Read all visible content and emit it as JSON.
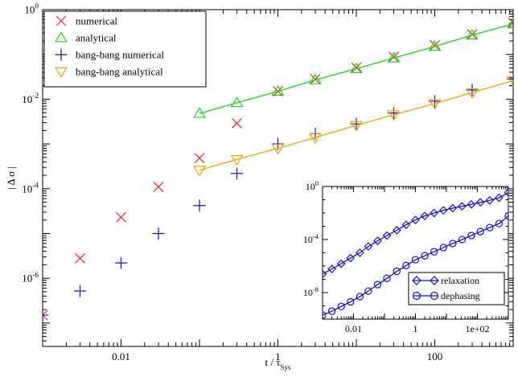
{
  "chart_data": [
    {
      "type": "scatter",
      "xscale": "log",
      "yscale": "log",
      "xlim": [
        0.001,
        1000
      ],
      "ylim": [
        3e-08,
        1
      ],
      "xlabel": "t / τ",
      "xlabel_sub": "Sys",
      "ylabel": "| Δ σ |",
      "x_ticks": [
        {
          "value": 0.01,
          "label": "0.01"
        },
        {
          "value": 1,
          "label": "1"
        },
        {
          "value": 100,
          "label": "100"
        }
      ],
      "y_ticks": [
        {
          "value": 1e-06,
          "base": "10",
          "exp": "-6"
        },
        {
          "value": 0.0001,
          "base": "10",
          "exp": "-4"
        },
        {
          "value": 0.01,
          "base": "10",
          "exp": "-2"
        },
        {
          "value": 1,
          "base": "10",
          "exp": "0"
        }
      ],
      "legend_position": "top-left",
      "series": [
        {
          "name": "numerical",
          "marker": "x",
          "color": "#e8262b",
          "x": [
            0.001,
            0.003,
            0.01,
            0.03,
            0.1,
            0.3,
            1,
            3,
            10,
            30,
            100,
            300,
            1000
          ],
          "y": [
            1.5e-07,
            2.8e-06,
            2.3e-05,
            0.00011,
            0.00048,
            0.0029,
            0.015,
            0.028,
            0.051,
            0.088,
            0.16,
            0.28,
            0.51
          ]
        },
        {
          "name": "analytical",
          "marker": "triangle-up",
          "color": "#1bd41b",
          "x": [
            0.1,
            0.3,
            1,
            3,
            10,
            30,
            100,
            300,
            1000
          ],
          "y": [
            0.0048,
            0.0083,
            0.015,
            0.027,
            0.048,
            0.083,
            0.15,
            0.27,
            0.48
          ],
          "line": true
        },
        {
          "name": "bang-bang numerical",
          "marker": "plus",
          "color": "#1212c8",
          "x": [
            0.001,
            0.003,
            0.01,
            0.03,
            0.1,
            0.3,
            1,
            3,
            10,
            30,
            100,
            300,
            1000
          ],
          "y": [
            1.5e-07,
            5.2e-07,
            2.2e-06,
            1e-05,
            4.2e-05,
            0.00022,
            0.001,
            0.0017,
            0.0028,
            0.0049,
            0.009,
            0.016,
            0.028
          ]
        },
        {
          "name": "bang-bang analytical",
          "marker": "triangle-down",
          "color": "#f5a000",
          "x": [
            0.1,
            0.3,
            1,
            3,
            10,
            30,
            100,
            300,
            1000
          ],
          "y": [
            0.00026,
            0.00045,
            0.0008,
            0.0014,
            0.0026,
            0.0045,
            0.008,
            0.014,
            0.026
          ],
          "line": true
        }
      ]
    },
    {
      "type": "line",
      "xscale": "log",
      "yscale": "log",
      "xlim": [
        0.001,
        1000
      ],
      "ylim": [
        1e-10,
        1
      ],
      "x_ticks": [
        {
          "value": 0.01,
          "label": "0.01"
        },
        {
          "value": 1,
          "label": "1"
        },
        {
          "value": 100,
          "label": "1e+02"
        }
      ],
      "y_ticks": [
        {
          "value": 1e-08,
          "base": "10",
          "exp": "-8"
        },
        {
          "value": 0.0001,
          "base": "10",
          "exp": "-4"
        },
        {
          "value": 1,
          "base": "10",
          "exp": "0"
        }
      ],
      "legend_position": "bottom-right",
      "series": [
        {
          "name": "relaxation",
          "marker": "diamond",
          "color": "#1212c8",
          "x": [
            0.001,
            0.002,
            0.004,
            0.008,
            0.016,
            0.03,
            0.06,
            0.12,
            0.25,
            0.5,
            1,
            2,
            4,
            8,
            16,
            32,
            64,
            125,
            250,
            500,
            1000
          ],
          "y": [
            2.5e-07,
            6e-07,
            1.5e-06,
            4e-06,
            1e-05,
            3e-05,
            8e-05,
            0.0002,
            0.0005,
            0.0013,
            0.003,
            0.006,
            0.01,
            0.016,
            0.023,
            0.032,
            0.045,
            0.063,
            0.09,
            0.14,
            0.35
          ]
        },
        {
          "name": "dephasing",
          "marker": "circle",
          "color": "#1212c8",
          "x": [
            0.001,
            0.002,
            0.004,
            0.008,
            0.016,
            0.03,
            0.06,
            0.12,
            0.25,
            0.5,
            1,
            2,
            4,
            8,
            16,
            32,
            64,
            125,
            250,
            500,
            1000
          ],
          "y": [
            2e-10,
            4e-10,
            9e-10,
            2e-09,
            5e-09,
            1.3e-08,
            4e-08,
            1.2e-07,
            4e-07,
            1.1e-06,
            3e-06,
            6e-06,
            1.2e-05,
            2.5e-05,
            5e-05,
            0.0001,
            0.0002,
            0.0004,
            0.0008,
            0.0016,
            0.006
          ]
        }
      ]
    }
  ]
}
